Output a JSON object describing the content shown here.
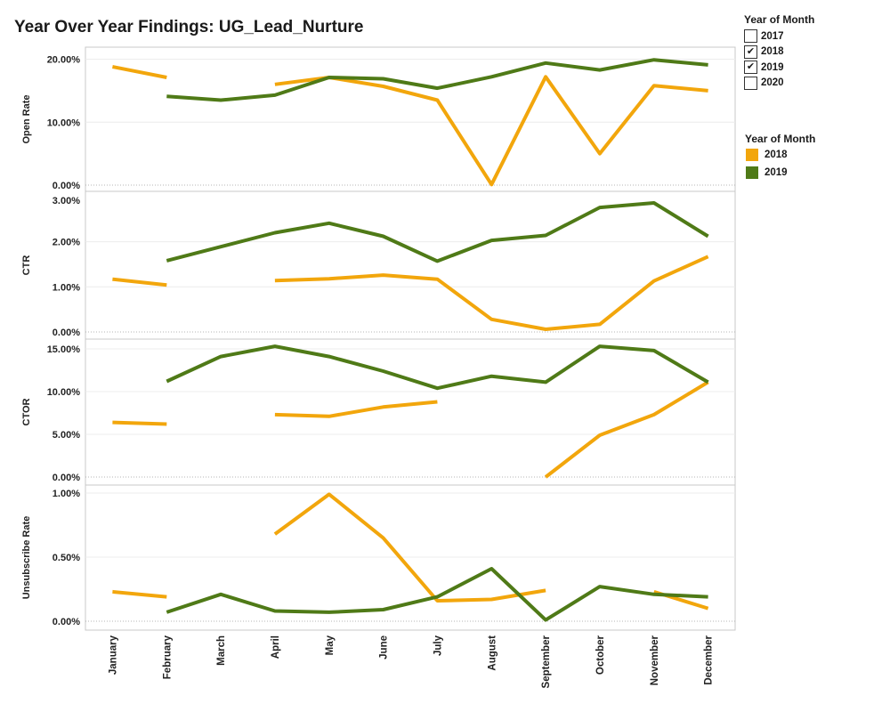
{
  "title": "Year Over Year Findings: UG_Lead_Nurture",
  "filter_legend": {
    "heading": "Year of Month",
    "items": [
      {
        "label": "2017",
        "checked": false
      },
      {
        "label": "2018",
        "checked": true
      },
      {
        "label": "2019",
        "checked": true
      },
      {
        "label": "2020",
        "checked": false
      }
    ]
  },
  "color_legend": {
    "heading": "Year of Month",
    "items": [
      {
        "label": "2018",
        "color": "#F2A60C"
      },
      {
        "label": "2019",
        "color": "#4F7A17"
      }
    ]
  },
  "chart_data": {
    "type": "line",
    "categories": [
      "January",
      "February",
      "March",
      "April",
      "May",
      "June",
      "July",
      "August",
      "September",
      "October",
      "November",
      "December"
    ],
    "series_colors": {
      "2018": "#F2A60C",
      "2019": "#4F7A17"
    },
    "panels": [
      {
        "ylabel": "Open Rate",
        "ylim": [
          0,
          20.5
        ],
        "ticks": [
          0,
          10,
          20
        ],
        "tick_labels": [
          "0.00%",
          "10.00%",
          "20.00%"
        ],
        "series": [
          {
            "name": "2018",
            "values": [
              18.8,
              17.1,
              null,
              16.0,
              17.1,
              15.7,
              13.5,
              0.1,
              17.2,
              5.0,
              15.8,
              15.0
            ]
          },
          {
            "name": "2019",
            "values": [
              null,
              14.1,
              13.5,
              14.3,
              17.1,
              16.9,
              15.4,
              17.2,
              19.4,
              18.3,
              19.9,
              19.1
            ]
          }
        ]
      },
      {
        "ylabel": "CTR",
        "ylim": [
          0,
          2.9
        ],
        "ticks": [
          0,
          1,
          2
        ],
        "tick_labels": [
          "0.00%",
          "1.00%",
          "2.00%"
        ],
        "top_label": "3.00%",
        "series": [
          {
            "name": "2018",
            "values": [
              1.17,
              1.04,
              null,
              1.14,
              1.18,
              1.26,
              1.17,
              0.28,
              0.06,
              0.17,
              1.13,
              1.67
            ]
          },
          {
            "name": "2019",
            "values": [
              null,
              1.58,
              1.89,
              2.2,
              2.41,
              2.12,
              1.57,
              2.03,
              2.14,
              2.76,
              2.86,
              2.12
            ]
          }
        ]
      },
      {
        "ylabel": "CTOR",
        "ylim": [
          0,
          15.0
        ],
        "ticks": [
          0,
          5,
          10,
          15
        ],
        "tick_labels": [
          "0.00%",
          "5.00%",
          "10.00%",
          "15.00%"
        ],
        "series": [
          {
            "name": "2018",
            "values": [
              6.4,
              6.2,
              null,
              7.3,
              7.1,
              8.2,
              8.8,
              null,
              0.0,
              4.9,
              7.3,
              11.1
            ]
          },
          {
            "name": "2019",
            "values": [
              null,
              11.2,
              14.1,
              15.3,
              14.1,
              12.4,
              10.4,
              11.8,
              11.1,
              15.3,
              14.8,
              11.1
            ]
          }
        ]
      },
      {
        "ylabel": "Unsubscribe Rate",
        "ylim": [
          0,
          1.0
        ],
        "ticks": [
          0,
          0.5,
          1.0
        ],
        "tick_labels": [
          "0.00%",
          "0.50%",
          "1.00%"
        ],
        "series": [
          {
            "name": "2018",
            "values": [
              0.23,
              0.19,
              null,
              0.68,
              0.99,
              0.65,
              0.16,
              0.17,
              0.24,
              null,
              0.23,
              0.1
            ]
          },
          {
            "name": "2019",
            "values": [
              null,
              0.07,
              0.21,
              0.08,
              0.07,
              0.09,
              0.19,
              0.41,
              0.01,
              0.27,
              0.21,
              0.19
            ]
          }
        ]
      }
    ]
  }
}
